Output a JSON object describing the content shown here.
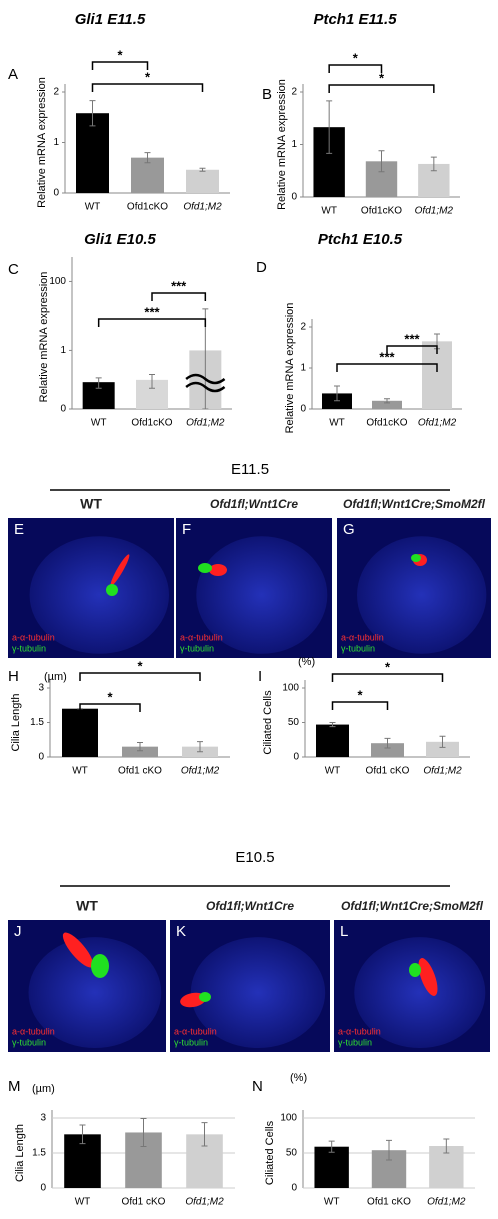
{
  "chart_data": [
    {
      "type": "bar",
      "panel": "A",
      "title": "Gli1 E11.5",
      "y_label": "Relative mRNA expression",
      "categories": [
        "WT",
        "Ofd1cKO",
        "Ofd1;M2"
      ],
      "values": [
        1.58,
        0.7,
        0.46
      ],
      "errors": [
        0.25,
        0.1,
        0.03
      ],
      "colors": [
        "#000000",
        "#999999",
        "#d0d0d0"
      ],
      "ylim": [
        0,
        2
      ],
      "yticks": [
        0,
        1,
        2
      ],
      "grid": false,
      "brackets": [
        {
          "from": 0,
          "to": 1,
          "label": "*"
        },
        {
          "from": 0,
          "to": 2,
          "label": "*"
        }
      ]
    },
    {
      "type": "bar",
      "panel": "B",
      "title": "Ptch1 E11.5",
      "y_label": "Relative mRNA expression",
      "categories": [
        "WT",
        "Ofd1cKO",
        "Ofd1;M2"
      ],
      "values": [
        1.33,
        0.68,
        0.63
      ],
      "errors": [
        0.5,
        0.2,
        0.13
      ],
      "colors": [
        "#000000",
        "#999999",
        "#d0d0d0"
      ],
      "ylim": [
        0,
        2
      ],
      "yticks": [
        0,
        1,
        2
      ],
      "grid": false,
      "brackets": [
        {
          "from": 0,
          "to": 1,
          "label": "*"
        },
        {
          "from": 0,
          "to": 2,
          "label": "*"
        }
      ]
    },
    {
      "type": "bar",
      "panel": "C",
      "title": "Gli1 E10.5",
      "y_label": "Relative mRNA expression",
      "categories": [
        "WT",
        "Ofd1cKO",
        "Ofd1;M2"
      ],
      "values": [
        0.12,
        0.14,
        1
      ],
      "errors": [
        0.04,
        0.06,
        15
      ],
      "colors": [
        "#000000",
        "#d8d8d8",
        "#d0d0d0"
      ],
      "log_scale": true,
      "axis_break": 2,
      "ylim": [
        0.02,
        300
      ],
      "yticks": [
        {
          "value": 0.02,
          "label": "0"
        },
        1,
        100
      ],
      "grid": false,
      "brackets": [
        {
          "from": 1,
          "to": 2,
          "label": "***"
        },
        {
          "from": 0,
          "to": 2,
          "label": "***"
        }
      ]
    },
    {
      "type": "bar",
      "panel": "D",
      "title": "Ptch1 E10.5",
      "y_label": "Relative mRNA expression",
      "categories": [
        "WT",
        "Ofd1cKO",
        "Ofd1;M2"
      ],
      "values": [
        0.38,
        0.2,
        1.65
      ],
      "errors": [
        0.18,
        0.05,
        0.18
      ],
      "colors": [
        "#000000",
        "#999999",
        "#d0d0d0"
      ],
      "ylim": [
        0,
        2
      ],
      "yticks": [
        0,
        1,
        2
      ],
      "grid": false,
      "brackets": [
        {
          "from": 1,
          "to": 2,
          "label": "***"
        },
        {
          "from": 0,
          "to": 2,
          "label": "***"
        }
      ]
    },
    {
      "type": "bar",
      "panel": "H",
      "unit": "(µm)",
      "y_label": "Cilia Length",
      "categories": [
        "WT",
        "Ofd1 cKO",
        "Ofd1;M2"
      ],
      "values": [
        2.1,
        0.45,
        0.45
      ],
      "errors": [
        0,
        0.18,
        0.22
      ],
      "colors": [
        "#000000",
        "#999999",
        "#d0d0d0"
      ],
      "ylim": [
        0,
        3
      ],
      "yticks": [
        0,
        1.5,
        3
      ],
      "grid": false,
      "brackets": [
        {
          "from": 0,
          "to": 2,
          "label": "*"
        },
        {
          "from": 0,
          "to": 1,
          "label": "*"
        }
      ]
    },
    {
      "type": "bar",
      "panel": "I",
      "unit": "(%)",
      "y_label": "Ciliated Cells",
      "categories": [
        "WT",
        "Ofd1 cKO",
        "Ofd1;M2"
      ],
      "values": [
        47,
        20,
        22
      ],
      "errors": [
        3,
        7,
        8
      ],
      "colors": [
        "#000000",
        "#999999",
        "#d0d0d0"
      ],
      "ylim": [
        0,
        100
      ],
      "yticks": [
        0,
        50,
        100
      ],
      "grid": false,
      "brackets": [
        {
          "from": 0,
          "to": 2,
          "label": "*"
        },
        {
          "from": 0,
          "to": 1,
          "label": "*"
        }
      ]
    },
    {
      "type": "bar",
      "panel": "M",
      "unit": "(µm)",
      "y_label": "Cilia Length",
      "categories": [
        "WT",
        "Ofd1 cKO",
        "Ofd1;M2"
      ],
      "values": [
        2.3,
        2.38,
        2.3
      ],
      "errors": [
        0.4,
        0.6,
        0.5
      ],
      "colors": [
        "#000000",
        "#999999",
        "#d0d0d0"
      ],
      "ylim": [
        0,
        3
      ],
      "yticks": [
        0,
        1.5,
        3
      ],
      "grid": true,
      "brackets": []
    },
    {
      "type": "bar",
      "panel": "N",
      "unit": "(%)",
      "y_label": "Ciliated Cells",
      "categories": [
        "WT",
        "Ofd1 cKO",
        "Ofd1;M2"
      ],
      "values": [
        59,
        54,
        60
      ],
      "errors": [
        8,
        14,
        10
      ],
      "colors": [
        "#000000",
        "#999999",
        "#d0d0d0"
      ],
      "ylim": [
        0,
        100
      ],
      "yticks": [
        0,
        50,
        100
      ],
      "grid": true,
      "brackets": []
    }
  ],
  "sections": [
    "E11.5",
    "E10.5"
  ],
  "images": [
    {
      "panel": "E",
      "title": "WT",
      "stain1": "a-α-tubulin",
      "stain2": "γ-tubulin"
    },
    {
      "panel": "F",
      "title": "Ofd1fl;Wnt1Cre",
      "stain1": "a-α-tubulin",
      "stain2": "γ-tubulin"
    },
    {
      "panel": "G",
      "title": "Ofd1fl;Wnt1Cre;SmoM2fl",
      "stain1": "a-α-tubulin",
      "stain2": "γ-tubulin"
    },
    {
      "panel": "J",
      "title": "WT",
      "stain1": "a-α-tubulin",
      "stain2": "γ-tubulin"
    },
    {
      "panel": "K",
      "title": "Ofd1fl;Wnt1Cre",
      "stain1": "a-α-tubulin",
      "stain2": "γ-tubulin"
    },
    {
      "panel": "L",
      "title": "Ofd1fl;Wnt1Cre;SmoM2fl",
      "stain1": "a-α-tubulin",
      "stain2": "γ-tubulin"
    }
  ]
}
